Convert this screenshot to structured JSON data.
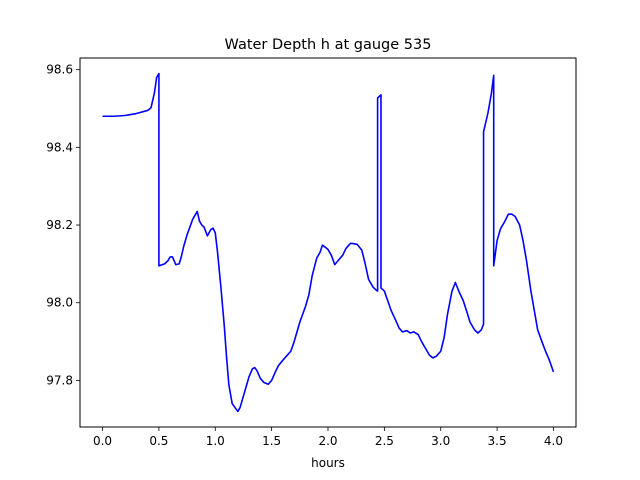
{
  "chart_data": {
    "type": "line",
    "title": "Water Depth h at gauge 535",
    "xlabel": "hours",
    "ylabel": "",
    "xlim": [
      -0.2,
      4.2
    ],
    "ylim": [
      97.68,
      98.63
    ],
    "x_ticks": [
      0.0,
      0.5,
      1.0,
      1.5,
      2.0,
      2.5,
      3.0,
      3.5,
      4.0
    ],
    "x_tick_labels": [
      "0.0",
      "0.5",
      "1.0",
      "1.5",
      "2.0",
      "2.5",
      "3.0",
      "3.5",
      "4.0"
    ],
    "y_ticks": [
      97.8,
      98.0,
      98.2,
      98.4,
      98.6
    ],
    "y_tick_labels": [
      "97.8",
      "98.0",
      "98.2",
      "98.4",
      "98.6"
    ],
    "grid": false,
    "legend": "none",
    "series": [
      {
        "color": "#0000ff",
        "x": [
          0.0,
          0.1,
          0.2,
          0.3,
          0.4,
          0.43,
          0.46,
          0.48,
          0.5,
          0.5,
          0.55,
          0.58,
          0.6,
          0.62,
          0.65,
          0.68,
          0.7,
          0.72,
          0.75,
          0.8,
          0.84,
          0.86,
          0.88,
          0.9,
          0.93,
          0.96,
          0.98,
          1.0,
          1.02,
          1.05,
          1.08,
          1.1,
          1.12,
          1.15,
          1.2,
          1.22,
          1.25,
          1.28,
          1.3,
          1.33,
          1.35,
          1.37,
          1.4,
          1.43,
          1.47,
          1.5,
          1.53,
          1.56,
          1.6,
          1.63,
          1.67,
          1.7,
          1.73,
          1.75,
          1.8,
          1.83,
          1.86,
          1.9,
          1.93,
          1.95,
          1.98,
          2.0,
          2.03,
          2.06,
          2.1,
          2.13,
          2.16,
          2.2,
          2.23,
          2.26,
          2.3,
          2.33,
          2.36,
          2.4,
          2.43,
          2.44,
          2.44,
          2.47,
          2.47,
          2.5,
          2.53,
          2.56,
          2.6,
          2.63,
          2.66,
          2.7,
          2.73,
          2.76,
          2.8,
          2.83,
          2.86,
          2.9,
          2.93,
          2.96,
          3.0,
          3.03,
          3.06,
          3.1,
          3.13,
          3.16,
          3.2,
          3.23,
          3.26,
          3.3,
          3.33,
          3.36,
          3.38,
          3.38,
          3.42,
          3.45,
          3.47,
          3.47,
          3.5,
          3.53,
          3.57,
          3.6,
          3.63,
          3.66,
          3.7,
          3.73,
          3.76,
          3.8,
          3.83,
          3.86,
          3.9,
          3.93,
          3.96,
          4.0
        ],
        "y": [
          98.48,
          98.48,
          98.482,
          98.487,
          98.495,
          98.502,
          98.54,
          98.58,
          98.59,
          98.095,
          98.1,
          98.108,
          98.118,
          98.118,
          98.098,
          98.1,
          98.12,
          98.145,
          98.175,
          98.215,
          98.235,
          98.21,
          98.2,
          98.195,
          98.172,
          98.188,
          98.192,
          98.18,
          98.13,
          98.04,
          97.94,
          97.86,
          97.79,
          97.74,
          97.72,
          97.73,
          97.76,
          97.79,
          97.81,
          97.83,
          97.833,
          97.825,
          97.805,
          97.795,
          97.79,
          97.8,
          97.82,
          97.838,
          97.852,
          97.862,
          97.875,
          97.9,
          97.93,
          97.95,
          97.99,
          98.02,
          98.07,
          98.115,
          98.13,
          98.148,
          98.142,
          98.137,
          98.122,
          98.098,
          98.112,
          98.122,
          98.14,
          98.153,
          98.152,
          98.15,
          98.135,
          98.1,
          98.06,
          98.04,
          98.032,
          98.03,
          98.527,
          98.535,
          98.038,
          98.03,
          98.005,
          97.98,
          97.955,
          97.935,
          97.925,
          97.928,
          97.922,
          97.925,
          97.918,
          97.9,
          97.885,
          97.865,
          97.858,
          97.862,
          97.875,
          97.91,
          97.97,
          98.03,
          98.052,
          98.03,
          98.005,
          97.978,
          97.95,
          97.93,
          97.922,
          97.93,
          97.945,
          98.44,
          98.49,
          98.54,
          98.585,
          98.095,
          98.16,
          98.19,
          98.21,
          98.228,
          98.228,
          98.222,
          98.2,
          98.16,
          98.11,
          98.03,
          97.98,
          97.93,
          97.898,
          97.875,
          97.855,
          97.822
        ]
      }
    ]
  }
}
